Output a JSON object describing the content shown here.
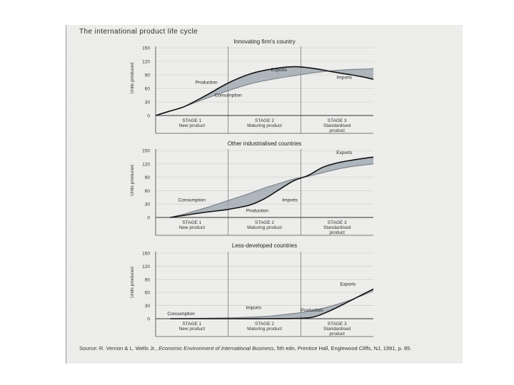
{
  "figure": {
    "title": "The international product life cycle",
    "source": {
      "prefix": "Source: R. Vernon & L. Wells Jr.,",
      "book": "Economic Environment of International Business",
      "suffix": ", 5th edn, Prentice Hall, Englewood Cliffs, NJ, 1991, p. 85."
    }
  },
  "chart_data": [
    {
      "type": "line",
      "title": "Innovating firm's country",
      "ylabel": "Units produced",
      "yticks": [
        0,
        30,
        60,
        90,
        120,
        150
      ],
      "ylim": [
        0,
        150
      ],
      "xlim": [
        0,
        3
      ],
      "stages": [
        {
          "line1": "STAGE 1",
          "line2": "New product"
        },
        {
          "line1": "STAGE 2",
          "line2": "Maturing product"
        },
        {
          "line1": "STAGE 3",
          "line2": "Standardised",
          "line3": "product"
        }
      ],
      "series": [
        {
          "name": "Production",
          "x": [
            0,
            0.2,
            0.4,
            0.7,
            1.0,
            1.3,
            1.6,
            1.9,
            2.1,
            2.3,
            2.5,
            2.7,
            2.9,
            3.0
          ],
          "y": [
            0,
            10,
            20,
            45,
            72,
            92,
            103,
            108,
            106,
            101,
            95,
            90,
            84,
            80
          ]
        },
        {
          "name": "Consumption",
          "x": [
            0,
            0.2,
            0.4,
            0.7,
            1.0,
            1.3,
            1.6,
            1.9,
            2.1,
            2.3,
            2.5,
            2.7,
            2.9,
            3.0
          ],
          "y": [
            0,
            10,
            20,
            38,
            55,
            70,
            80,
            88,
            93,
            97,
            100,
            102,
            103,
            104
          ]
        }
      ],
      "annotations": [
        {
          "text": "Exports",
          "x": 1.7,
          "y": 98
        },
        {
          "text": "Production",
          "x": 0.7,
          "y": 70
        },
        {
          "text": "Consumption",
          "x": 1.0,
          "y": 42
        },
        {
          "text": "Imports",
          "x": 2.6,
          "y": 81
        }
      ]
    },
    {
      "type": "line",
      "title": "Other industrialised countries",
      "ylabel": "Units produced",
      "yticks": [
        0,
        30,
        60,
        90,
        120,
        150
      ],
      "ylim": [
        0,
        150
      ],
      "xlim": [
        0,
        3
      ],
      "stages": [
        {
          "line1": "STAGE 1",
          "line2": "New product"
        },
        {
          "line1": "STAGE 2",
          "line2": "Maturing product"
        },
        {
          "line1": "STAGE 3",
          "line2": "Standardised",
          "line3": "product"
        }
      ],
      "series": [
        {
          "name": "Production",
          "x": [
            0.2,
            0.4,
            0.7,
            1.0,
            1.3,
            1.5,
            1.7,
            1.9,
            2.1,
            2.3,
            2.5,
            2.7,
            2.9,
            3.0
          ],
          "y": [
            0,
            5,
            12,
            18,
            28,
            42,
            62,
            82,
            94,
            112,
            122,
            128,
            133,
            135
          ]
        },
        {
          "name": "Consumption",
          "x": [
            0.2,
            0.4,
            0.7,
            1.0,
            1.3,
            1.5,
            1.7,
            1.9,
            2.1,
            2.3,
            2.5,
            2.7,
            2.9,
            3.0
          ],
          "y": [
            0,
            8,
            22,
            38,
            54,
            66,
            76,
            86,
            92,
            100,
            108,
            114,
            118,
            120
          ]
        }
      ],
      "annotations": [
        {
          "text": "Exports",
          "x": 2.6,
          "y": 142
        },
        {
          "text": "Consumption",
          "x": 0.5,
          "y": 36
        },
        {
          "text": "Imports",
          "x": 1.85,
          "y": 36
        },
        {
          "text": "Production",
          "x": 1.4,
          "y": 12
        }
      ]
    },
    {
      "type": "line",
      "title": "Less-developed countries",
      "ylabel": "Units produced",
      "yticks": [
        0,
        30,
        60,
        90,
        120,
        150
      ],
      "ylim": [
        0,
        150
      ],
      "xlim": [
        0,
        3
      ],
      "stages": [
        {
          "line1": "STAGE 1",
          "line2": "New product"
        },
        {
          "line1": "STAGE 2",
          "line2": "Maturing product"
        },
        {
          "line1": "STAGE 3",
          "line2": "Standardised",
          "line3": "product"
        }
      ],
      "series": [
        {
          "name": "Production",
          "x": [
            0.2,
            1.0,
            1.5,
            2.0,
            2.2,
            2.4,
            2.6,
            2.8,
            3.0
          ],
          "y": [
            0,
            0,
            0,
            1,
            5,
            18,
            34,
            51,
            68
          ]
        },
        {
          "name": "Consumption",
          "x": [
            0.2,
            1.0,
            1.5,
            1.8,
            2.0,
            2.2,
            2.4,
            2.6,
            2.8,
            3.0
          ],
          "y": [
            0,
            2,
            5,
            10,
            14,
            20,
            28,
            38,
            50,
            64
          ]
        }
      ],
      "annotations": [
        {
          "text": "Exports",
          "x": 2.65,
          "y": 76
        },
        {
          "text": "Consumption",
          "x": 0.35,
          "y": 8
        },
        {
          "text": "Imports",
          "x": 1.35,
          "y": 22
        },
        {
          "text": "Production",
          "x": 2.15,
          "y": 16
        }
      ]
    }
  ]
}
